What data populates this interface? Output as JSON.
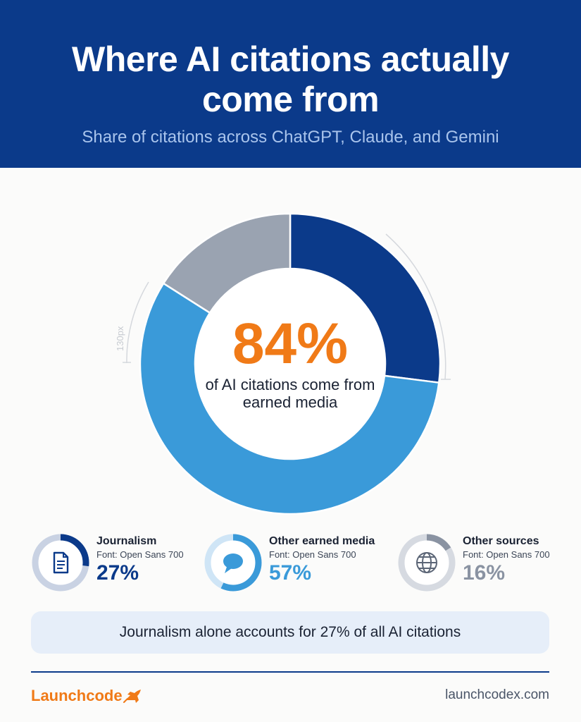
{
  "header": {
    "title_line1": "Where AI citations actually",
    "title_line2": "come from",
    "subtitle": "Share of citations across ChatGPT, Claude, and Gemini"
  },
  "chart_data": {
    "type": "pie",
    "style": "donut",
    "categories": [
      "Journalism",
      "Other earned media",
      "Other sources"
    ],
    "values": [
      27,
      57,
      16
    ],
    "unit": "%",
    "colors": [
      "#0b3a8a",
      "#3a9ad9",
      "#9aa3b1"
    ],
    "center_value": "84%",
    "center_caption": "of AI citations come from earned media",
    "dimension_note": "130px"
  },
  "stats": [
    {
      "label": "Journalism",
      "note": "Font: Open Sans 700",
      "value": "27%",
      "color": "#0b3a8a",
      "track": "#c9d2e3",
      "icon": "document-icon"
    },
    {
      "label": "Other earned media",
      "note": "Font: Open Sans 700",
      "value": "57%",
      "color": "#3a9ad9",
      "track": "#cfe5f6",
      "icon": "speech-bubble-icon"
    },
    {
      "label": "Other sources",
      "note": "Font: Open Sans 700",
      "value": "16%",
      "color": "#8a93a2",
      "track": "#d6dae1",
      "icon": "globe-icon"
    }
  ],
  "callout": "Journalism alone accounts for 27% of all AI citations",
  "footer": {
    "brand": "Launchcode",
    "website": "launchcodex.com"
  }
}
